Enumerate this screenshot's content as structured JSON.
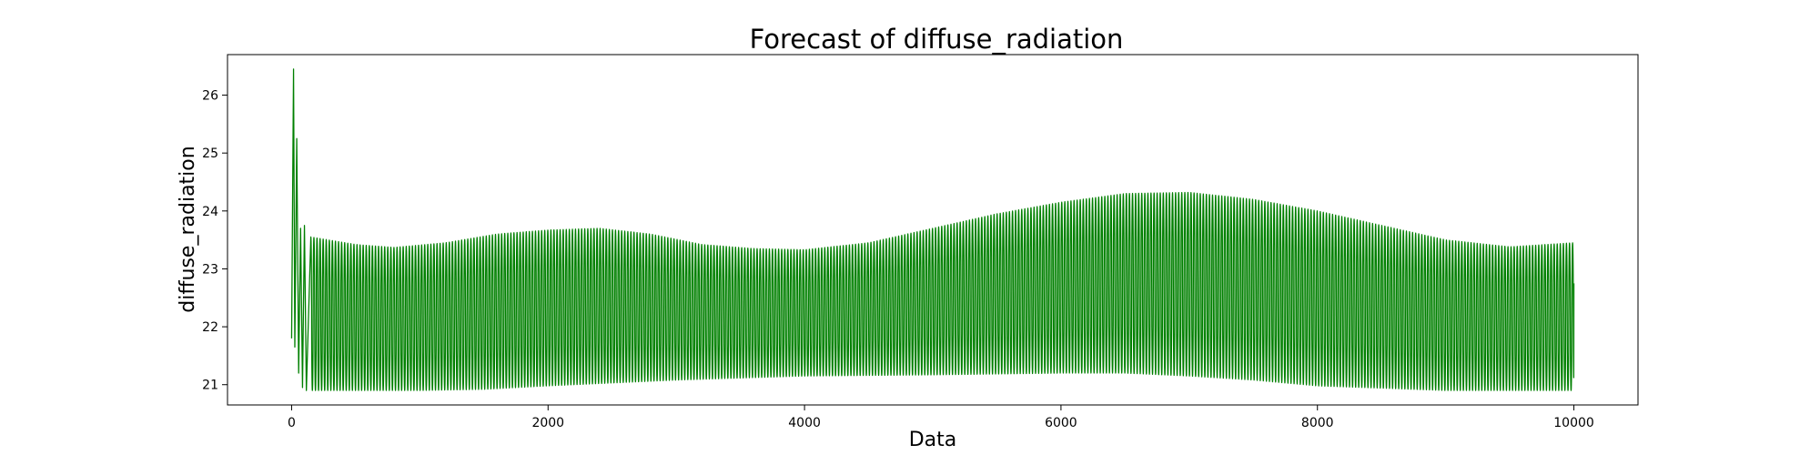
{
  "chart_data": {
    "type": "line",
    "title": "Forecast of diffuse_radiation",
    "xlabel": "Data",
    "ylabel": "diffuse_radiation",
    "xlim": [
      -500,
      10500
    ],
    "ylim": [
      20.65,
      26.7
    ],
    "xticks": [
      0,
      2000,
      4000,
      6000,
      8000,
      10000
    ],
    "xtick_labels": [
      "0",
      "2000",
      "4000",
      "6000",
      "8000",
      "10000"
    ],
    "yticks": [
      21,
      22,
      23,
      24,
      25,
      26
    ],
    "ytick_labels": [
      "21",
      "22",
      "23",
      "24",
      "25",
      "26"
    ],
    "grid": false,
    "legend": "none",
    "series": [
      {
        "color": "#008000",
        "x_range": [
          0,
          10000
        ],
        "n_points": 10000,
        "cycle_period": 24,
        "initial_spikes": [
          {
            "x": 0,
            "y": 21.8
          },
          {
            "x": 15,
            "y": 26.45
          },
          {
            "x": 25,
            "y": 21.65
          },
          {
            "x": 40,
            "y": 25.25
          },
          {
            "x": 55,
            "y": 21.2
          },
          {
            "x": 70,
            "y": 23.7
          },
          {
            "x": 85,
            "y": 20.95
          },
          {
            "x": 100,
            "y": 23.75
          },
          {
            "x": 115,
            "y": 20.9
          }
        ],
        "upper_envelope": [
          {
            "x": 150,
            "y": 23.55
          },
          {
            "x": 500,
            "y": 23.42
          },
          {
            "x": 800,
            "y": 23.37
          },
          {
            "x": 1200,
            "y": 23.45
          },
          {
            "x": 1600,
            "y": 23.6
          },
          {
            "x": 2000,
            "y": 23.67
          },
          {
            "x": 2400,
            "y": 23.7
          },
          {
            "x": 2800,
            "y": 23.6
          },
          {
            "x": 3200,
            "y": 23.42
          },
          {
            "x": 3600,
            "y": 23.35
          },
          {
            "x": 4000,
            "y": 23.33
          },
          {
            "x": 4500,
            "y": 23.45
          },
          {
            "x": 5000,
            "y": 23.7
          },
          {
            "x": 5500,
            "y": 23.95
          },
          {
            "x": 6000,
            "y": 24.15
          },
          {
            "x": 6500,
            "y": 24.3
          },
          {
            "x": 7000,
            "y": 24.32
          },
          {
            "x": 7500,
            "y": 24.2
          },
          {
            "x": 8000,
            "y": 24.0
          },
          {
            "x": 8500,
            "y": 23.75
          },
          {
            "x": 9000,
            "y": 23.5
          },
          {
            "x": 9500,
            "y": 23.38
          },
          {
            "x": 10000,
            "y": 23.45
          }
        ],
        "lower_envelope": [
          {
            "x": 150,
            "y": 20.9
          },
          {
            "x": 1000,
            "y": 20.9
          },
          {
            "x": 1500,
            "y": 20.92
          },
          {
            "x": 2000,
            "y": 20.98
          },
          {
            "x": 3000,
            "y": 21.08
          },
          {
            "x": 4000,
            "y": 21.15
          },
          {
            "x": 5000,
            "y": 21.17
          },
          {
            "x": 6000,
            "y": 21.2
          },
          {
            "x": 6500,
            "y": 21.2
          },
          {
            "x": 7000,
            "y": 21.15
          },
          {
            "x": 7500,
            "y": 21.08
          },
          {
            "x": 8000,
            "y": 20.98
          },
          {
            "x": 9000,
            "y": 20.9
          },
          {
            "x": 10000,
            "y": 20.9
          }
        ],
        "final_value": 22.75
      }
    ]
  }
}
